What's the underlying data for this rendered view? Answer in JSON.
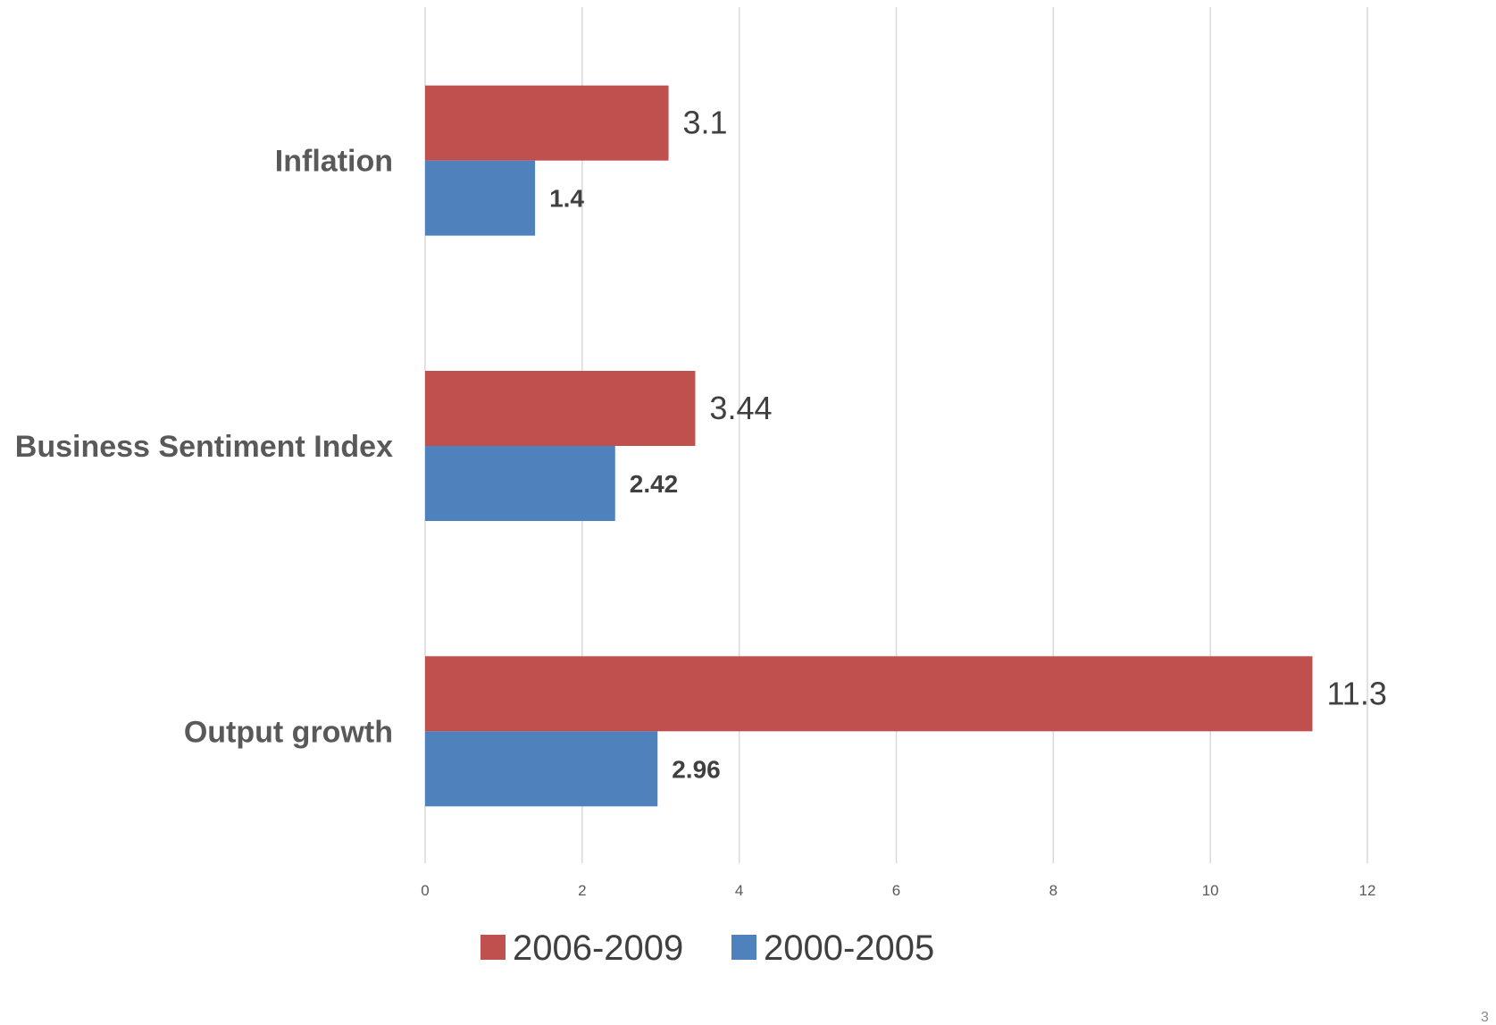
{
  "chart_data": {
    "type": "bar",
    "orientation": "horizontal",
    "categories": [
      "Inflation",
      "Business Sentiment Index",
      "Output growth"
    ],
    "series": [
      {
        "name": "2006-2009",
        "values": [
          3.1,
          3.44,
          11.3
        ],
        "labels": [
          "3.1",
          "3.44",
          "11.3"
        ],
        "color": "#C0504D"
      },
      {
        "name": "2000-2005",
        "values": [
          1.4,
          2.42,
          2.96
        ],
        "labels": [
          "1.4",
          "2.42",
          "2.96"
        ],
        "color": "#4F81BD"
      }
    ],
    "xlim": [
      0,
      12
    ],
    "xticks": [
      0,
      2,
      4,
      6,
      8,
      10,
      12
    ],
    "grid": true,
    "legend_position": "bottom",
    "title": "",
    "xlabel": "",
    "ylabel": ""
  },
  "page_number": "3"
}
